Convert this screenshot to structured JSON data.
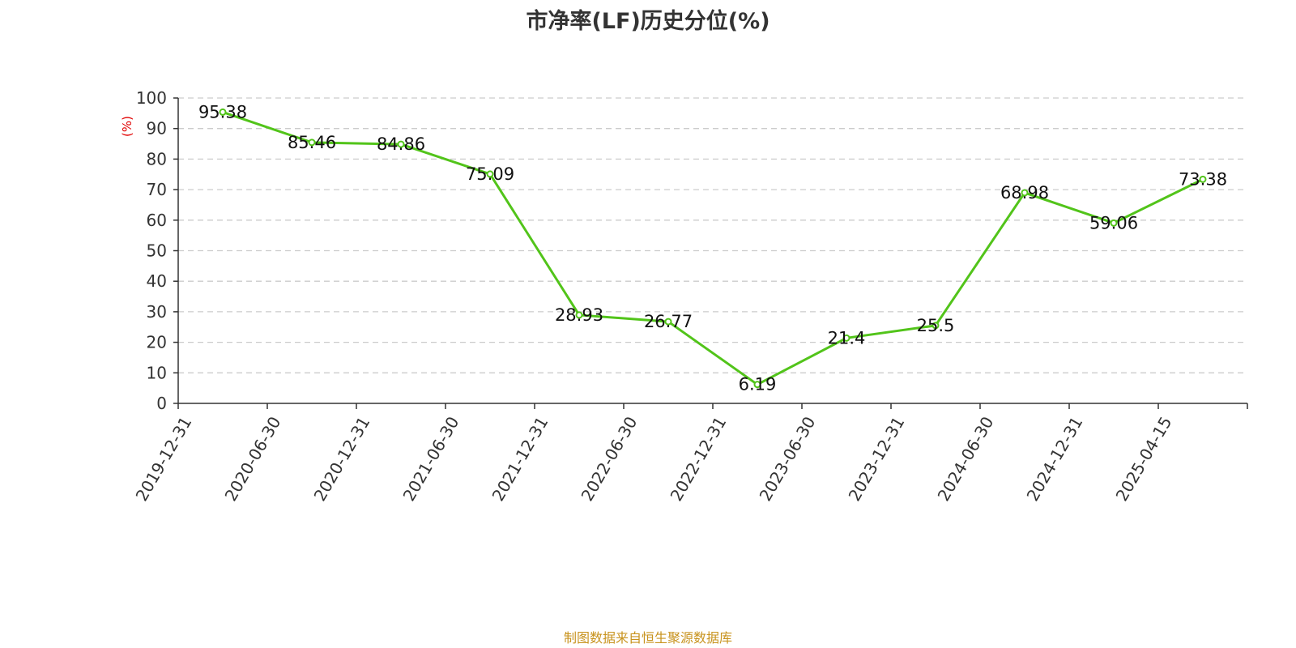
{
  "chart_data": {
    "type": "line",
    "title": "市净率(LF)历史分位(%)",
    "ylabel": "(%)",
    "xlabel": "",
    "categories": [
      "2019-12-31",
      "2020-06-30",
      "2020-12-31",
      "2021-06-30",
      "2021-12-31",
      "2022-06-30",
      "2022-12-31",
      "2023-06-30",
      "2023-12-31",
      "2024-06-30",
      "2024-12-31",
      "2025-04-15"
    ],
    "series": [
      {
        "values": [
          95.38,
          85.46,
          84.86,
          75.09,
          28.93,
          26.77,
          6.19,
          21.4,
          25.5,
          68.98,
          59.06,
          73.38
        ],
        "labels": [
          "95.38",
          "85.46",
          "84.86",
          "75.09",
          "28.93",
          "26.77",
          "6.19",
          "21.4",
          "25.5",
          "68.98",
          "59.06",
          "73.38"
        ],
        "color": "#52c41a"
      }
    ],
    "ylim": [
      0,
      100
    ],
    "yticks": [
      "0",
      "10",
      "20",
      "30",
      "40",
      "50",
      "60",
      "70",
      "80",
      "90",
      "100"
    ],
    "grid": true,
    "grid_style": "dashed",
    "legend": "none"
  },
  "footer": {
    "source": "制图数据来自恒生聚源数据库"
  },
  "colors": {
    "line": "#52c41a",
    "unit_label": "#e00000",
    "footer_text": "#c8931e",
    "grid": "#cccccc",
    "axis": "#333333"
  }
}
